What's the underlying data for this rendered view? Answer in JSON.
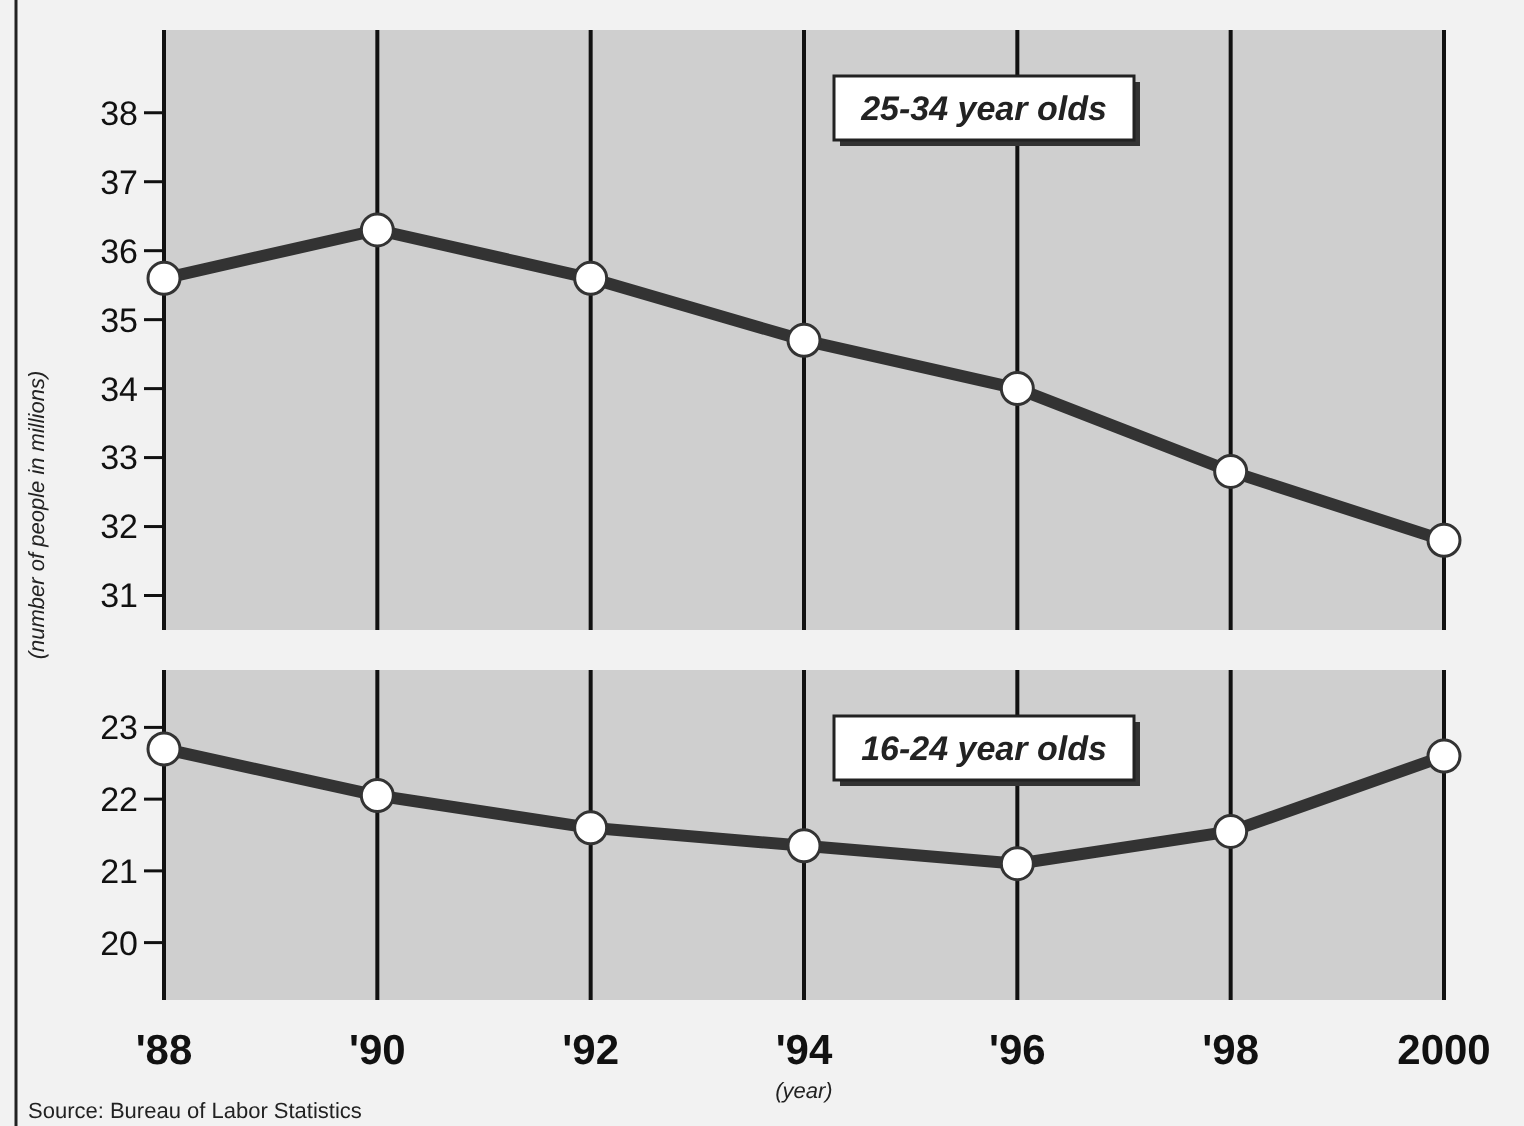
{
  "chart_data": [
    {
      "type": "line",
      "ylabel": "(number of people in millions)",
      "x": [
        1988,
        1990,
        1992,
        1994,
        1996,
        1998,
        2000
      ],
      "xlim": [
        1988,
        2000
      ],
      "xticks": [
        1988,
        1990,
        1992,
        1994,
        1996,
        1998,
        2000
      ],
      "ylim": [
        30.5,
        39.2
      ],
      "yticks": [
        31,
        32,
        33,
        34,
        35,
        36,
        37,
        38
      ],
      "tick_labels": "y",
      "grid": "x",
      "marker": "circle",
      "series": [
        {
          "name": "25-34 year olds",
          "color": "#333333",
          "values": [
            35.6,
            36.3,
            35.6,
            34.7,
            34.0,
            32.8,
            31.8
          ]
        }
      ]
    },
    {
      "type": "line",
      "xlabel": "(year)",
      "annotations": [
        "Source: Bureau of Labor Statistics"
      ],
      "x": [
        1988,
        1990,
        1992,
        1994,
        1996,
        1998,
        2000
      ],
      "xlim": [
        1988,
        2000
      ],
      "xticks": [
        {
          "value": 1988,
          "label": "'88"
        },
        {
          "value": 1990,
          "label": "'90"
        },
        {
          "value": 1992,
          "label": "'92"
        },
        {
          "value": 1994,
          "label": "'94"
        },
        {
          "value": 1996,
          "label": "'96"
        },
        {
          "value": 1998,
          "label": "'98"
        },
        {
          "value": 2000,
          "label": "2000"
        }
      ],
      "ylim": [
        19.2,
        23.8
      ],
      "yticks": [
        20,
        21,
        22,
        23
      ],
      "grid": "x",
      "marker": "circle",
      "series": [
        {
          "name": "16-24 year olds",
          "color": "#333333",
          "values": [
            22.7,
            22.05,
            21.6,
            21.35,
            21.1,
            21.55,
            22.6
          ]
        }
      ]
    }
  ]
}
